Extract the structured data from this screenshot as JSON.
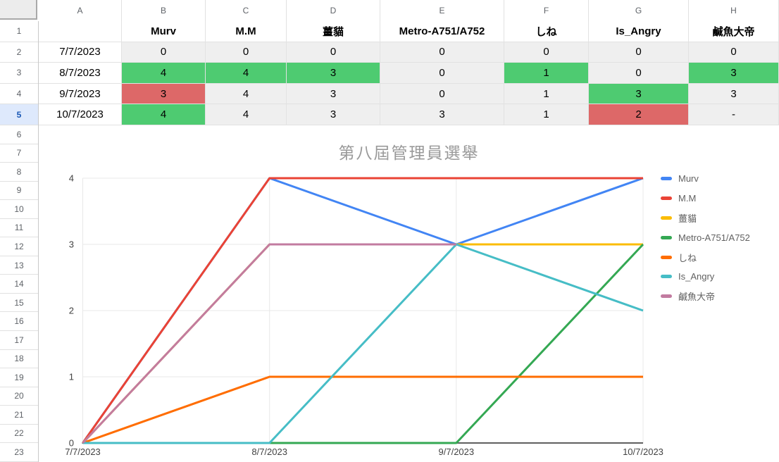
{
  "sheet": {
    "column_letters": [
      "A",
      "B",
      "C",
      "D",
      "E",
      "F",
      "G",
      "H"
    ],
    "row_numbers": [
      1,
      2,
      3,
      4,
      5,
      6,
      7,
      8,
      9,
      10,
      11,
      12,
      13,
      14,
      15,
      16,
      17,
      18,
      19,
      20,
      21,
      22,
      23
    ],
    "selected_row": 5,
    "colors": {
      "green_fill": "#4ECB71",
      "red_fill": "#DD6868",
      "plain_fill": "#EFEFEF",
      "selected_header_bg": "#DEE9FC",
      "selected_header_text": "#1857B5"
    },
    "table": {
      "header_row": [
        "",
        "Murv",
        "M.M",
        "薑貓",
        "Metro-A751/A752",
        "しね",
        "Is_Angry",
        "鹹魚大帝"
      ],
      "rows": [
        {
          "row": 2,
          "date": "7/7/2023",
          "cells": [
            {
              "v": "0",
              "c": "plain"
            },
            {
              "v": "0",
              "c": "plain"
            },
            {
              "v": "0",
              "c": "plain"
            },
            {
              "v": "0",
              "c": "plain"
            },
            {
              "v": "0",
              "c": "plain"
            },
            {
              "v": "0",
              "c": "plain"
            },
            {
              "v": "0",
              "c": "plain"
            }
          ]
        },
        {
          "row": 3,
          "date": "8/7/2023",
          "cells": [
            {
              "v": "4",
              "c": "green"
            },
            {
              "v": "4",
              "c": "green"
            },
            {
              "v": "3",
              "c": "green"
            },
            {
              "v": "0",
              "c": "plain"
            },
            {
              "v": "1",
              "c": "green"
            },
            {
              "v": "0",
              "c": "plain"
            },
            {
              "v": "3",
              "c": "green"
            }
          ]
        },
        {
          "row": 4,
          "date": "9/7/2023",
          "cells": [
            {
              "v": "3",
              "c": "red"
            },
            {
              "v": "4",
              "c": "plain"
            },
            {
              "v": "3",
              "c": "plain"
            },
            {
              "v": "0",
              "c": "plain"
            },
            {
              "v": "1",
              "c": "plain"
            },
            {
              "v": "3",
              "c": "green"
            },
            {
              "v": "3",
              "c": "plain"
            }
          ]
        },
        {
          "row": 5,
          "date": "10/7/2023",
          "cells": [
            {
              "v": "4",
              "c": "green"
            },
            {
              "v": "4",
              "c": "plain"
            },
            {
              "v": "3",
              "c": "plain"
            },
            {
              "v": "3",
              "c": "plain"
            },
            {
              "v": "1",
              "c": "plain"
            },
            {
              "v": "2",
              "c": "red"
            },
            {
              "v": "-",
              "c": "plain"
            }
          ]
        }
      ]
    }
  },
  "chart_data": {
    "type": "line",
    "title": "第八屆管理員選舉",
    "x": [
      "7/7/2023",
      "8/7/2023",
      "9/7/2023",
      "10/7/2023"
    ],
    "series": [
      {
        "name": "Murv",
        "color": "#4285F4",
        "values": [
          0,
          4,
          3,
          4
        ]
      },
      {
        "name": "M.M",
        "color": "#EA4335",
        "values": [
          0,
          4,
          4,
          4
        ]
      },
      {
        "name": "薑貓",
        "color": "#FBBC04",
        "values": [
          0,
          3,
          3,
          3
        ]
      },
      {
        "name": "Metro-A751/A752",
        "color": "#34A853",
        "values": [
          0,
          0,
          0,
          3
        ]
      },
      {
        "name": "しね",
        "color": "#FF6D01",
        "values": [
          0,
          1,
          1,
          1
        ]
      },
      {
        "name": "Is_Angry",
        "color": "#46BDC6",
        "values": [
          0,
          0,
          3,
          2
        ]
      },
      {
        "name": "鹹魚大帝",
        "color": "#C27BA0",
        "values": [
          0,
          3,
          3,
          null
        ]
      }
    ],
    "ylim": [
      0,
      4
    ],
    "yticks": [
      0,
      1,
      2,
      3,
      4
    ],
    "grid": true,
    "legend_position": "right",
    "axis_text_color": "#424242",
    "gridline_color": "#E8E8E8",
    "baseline_color": "#5F5F5F",
    "title_color": "#999999"
  }
}
